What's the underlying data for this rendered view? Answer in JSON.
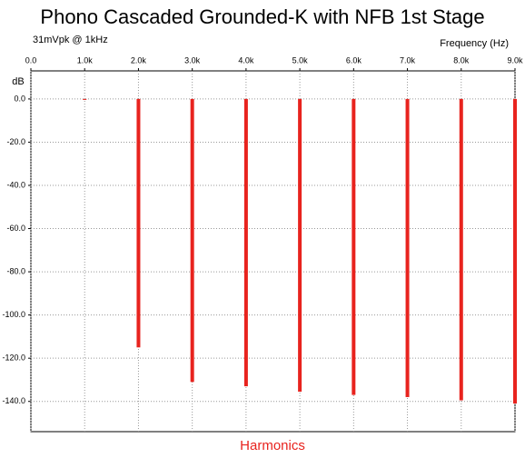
{
  "chart_data": {
    "type": "stem",
    "title": "Phono Cascaded Grounded-K with NFB 1st Stage",
    "subtitle": "31mVpk @ 1kHz",
    "x_label": "Harmonics",
    "x_unit_label": "Frequency  (Hz)",
    "y_label": "dB",
    "x": [
      1000,
      2000,
      3000,
      4000,
      5000,
      6000,
      7000,
      8000,
      9000
    ],
    "values": [
      0,
      -115,
      -131,
      -133,
      -135.5,
      -137,
      -138,
      -139.5,
      -141
    ],
    "color": "#e8231e",
    "xlim": [
      0,
      9000
    ],
    "xticks": [
      {
        "value": 0,
        "label": "0.0"
      },
      {
        "value": 1000,
        "label": "1.0k"
      },
      {
        "value": 2000,
        "label": "2.0k"
      },
      {
        "value": 3000,
        "label": "3.0k"
      },
      {
        "value": 4000,
        "label": "4.0k"
      },
      {
        "value": 5000,
        "label": "5.0k"
      },
      {
        "value": 6000,
        "label": "6.0k"
      },
      {
        "value": 7000,
        "label": "7.0k"
      },
      {
        "value": 8000,
        "label": "8.0k"
      },
      {
        "value": 9000,
        "label": "9.0k"
      }
    ],
    "ylim": [
      -154,
      13
    ],
    "yticks": [
      {
        "value": 0,
        "label": "0.0"
      },
      {
        "value": -20,
        "label": "-20.0"
      },
      {
        "value": -40,
        "label": "-40.0"
      },
      {
        "value": -60,
        "label": "-60.0"
      },
      {
        "value": -80,
        "label": "-80.0"
      },
      {
        "value": -100,
        "label": "-100.0"
      },
      {
        "value": -120,
        "label": "-120.0"
      },
      {
        "value": -140,
        "label": "-140.0"
      }
    ],
    "grid": true
  }
}
